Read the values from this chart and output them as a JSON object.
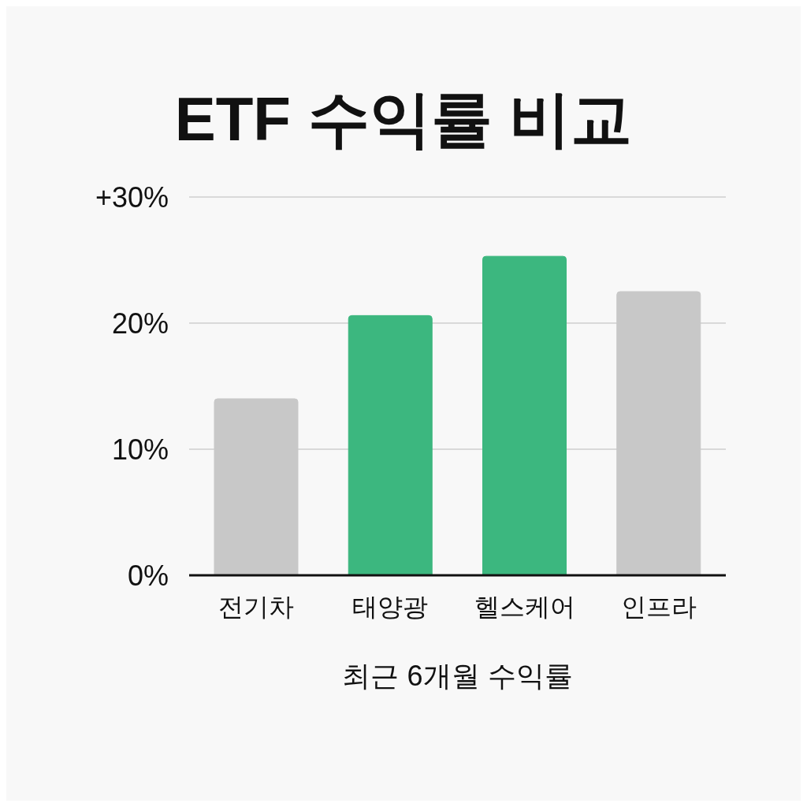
{
  "chart_data": {
    "type": "bar",
    "title": "ETF 수익률 비교",
    "xlabel": "최근 6개월 수익률",
    "categories": [
      "전기차",
      "태양광",
      "헬스케어",
      "인프라"
    ],
    "values": [
      14,
      20.6,
      25.3,
      22.5
    ],
    "colors": [
      "#c8c8c8",
      "#3cb77f",
      "#3cb77f",
      "#c8c8c8"
    ],
    "ylim": [
      0,
      30
    ],
    "yticks": [
      {
        "value": 0,
        "label": "0%"
      },
      {
        "value": 10,
        "label": "10%"
      },
      {
        "value": 20,
        "label": "20%"
      },
      {
        "value": 30,
        "label": "+30%"
      }
    ],
    "grid": "y"
  }
}
